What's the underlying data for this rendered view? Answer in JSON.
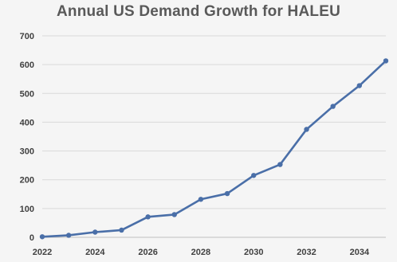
{
  "chart_data": {
    "type": "line",
    "title": "Annual US Demand Growth for HALEU",
    "xlabel": "",
    "ylabel": "",
    "x": [
      2022,
      2023,
      2024,
      2025,
      2026,
      2027,
      2028,
      2029,
      2030,
      2031,
      2032,
      2033,
      2034,
      2035
    ],
    "series": [
      {
        "values": [
          2,
          7,
          18,
          25,
          71,
          79,
          132,
          152,
          215,
          253,
          375,
          455,
          527,
          613
        ]
      }
    ],
    "xlim": [
      2022,
      2035
    ],
    "ylim": [
      0,
      700
    ],
    "x_ticks": [
      "2022",
      "2024",
      "2026",
      "2028",
      "2030",
      "2032",
      "2034"
    ],
    "y_ticks": [
      "0",
      "100",
      "200",
      "300",
      "400",
      "500",
      "600",
      "700"
    ],
    "grid": "horizontal",
    "legend": "none",
    "line_color": "#4a6fa8",
    "grid_color": "#d9d9d9",
    "title_color": "#595959"
  }
}
